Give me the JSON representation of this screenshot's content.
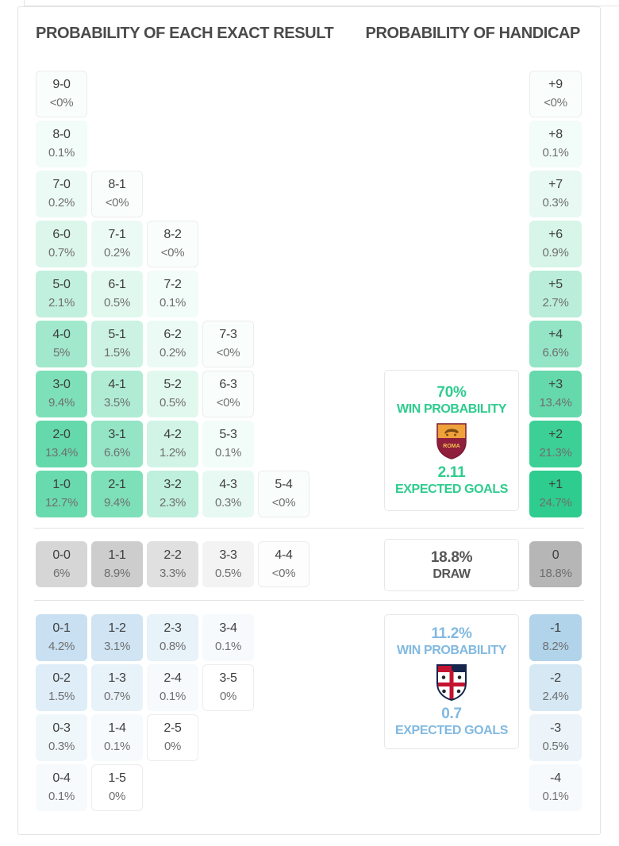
{
  "headers": {
    "left": "PROBABILITY OF EACH EXACT RESULT",
    "right": "PROBABILITY OF HANDICAP"
  },
  "colors": {
    "home": "#2ecc8e",
    "draw": "#ababab",
    "away": "#79b4dd",
    "home_text": "#2ecc8e",
    "away_text": "#82b9e0",
    "draw_text": "#555555"
  },
  "chart_data": {
    "type": "heatmap",
    "title_left": "PROBABILITY OF EACH EXACT RESULT",
    "title_right": "PROBABILITY OF HANDICAP",
    "max_pct": 24.7,
    "exact_result_rows": [
      {
        "group": "home",
        "cells": [
          {
            "score": "9-0",
            "pct": "<0%",
            "v": 0.02
          }
        ]
      },
      {
        "group": "home",
        "cells": [
          {
            "score": "8-0",
            "pct": "0.1%",
            "v": 0.1
          }
        ]
      },
      {
        "group": "home",
        "cells": [
          {
            "score": "7-0",
            "pct": "0.2%",
            "v": 0.2
          },
          {
            "score": "8-1",
            "pct": "<0%",
            "v": 0.02
          }
        ]
      },
      {
        "group": "home",
        "cells": [
          {
            "score": "6-0",
            "pct": "0.7%",
            "v": 0.7
          },
          {
            "score": "7-1",
            "pct": "0.2%",
            "v": 0.2
          },
          {
            "score": "8-2",
            "pct": "<0%",
            "v": 0.02
          }
        ]
      },
      {
        "group": "home",
        "cells": [
          {
            "score": "5-0",
            "pct": "2.1%",
            "v": 2.1
          },
          {
            "score": "6-1",
            "pct": "0.5%",
            "v": 0.5
          },
          {
            "score": "7-2",
            "pct": "0.1%",
            "v": 0.1
          }
        ]
      },
      {
        "group": "home",
        "cells": [
          {
            "score": "4-0",
            "pct": "5%",
            "v": 5
          },
          {
            "score": "5-1",
            "pct": "1.5%",
            "v": 1.5
          },
          {
            "score": "6-2",
            "pct": "0.2%",
            "v": 0.2
          },
          {
            "score": "7-3",
            "pct": "<0%",
            "v": 0.02
          }
        ]
      },
      {
        "group": "home",
        "cells": [
          {
            "score": "3-0",
            "pct": "9.4%",
            "v": 9.4
          },
          {
            "score": "4-1",
            "pct": "3.5%",
            "v": 3.5
          },
          {
            "score": "5-2",
            "pct": "0.5%",
            "v": 0.5
          },
          {
            "score": "6-3",
            "pct": "<0%",
            "v": 0.02
          }
        ]
      },
      {
        "group": "home",
        "cells": [
          {
            "score": "2-0",
            "pct": "13.4%",
            "v": 13.4
          },
          {
            "score": "3-1",
            "pct": "6.6%",
            "v": 6.6
          },
          {
            "score": "4-2",
            "pct": "1.2%",
            "v": 1.2
          },
          {
            "score": "5-3",
            "pct": "0.1%",
            "v": 0.1
          }
        ]
      },
      {
        "group": "home",
        "cells": [
          {
            "score": "1-0",
            "pct": "12.7%",
            "v": 12.7
          },
          {
            "score": "2-1",
            "pct": "9.4%",
            "v": 9.4
          },
          {
            "score": "3-2",
            "pct": "2.3%",
            "v": 2.3
          },
          {
            "score": "4-3",
            "pct": "0.3%",
            "v": 0.3
          },
          {
            "score": "5-4",
            "pct": "<0%",
            "v": 0.02
          }
        ]
      },
      {
        "group": "draw",
        "cells": [
          {
            "score": "0-0",
            "pct": "6%",
            "v": 6
          },
          {
            "score": "1-1",
            "pct": "8.9%",
            "v": 8.9
          },
          {
            "score": "2-2",
            "pct": "3.3%",
            "v": 3.3
          },
          {
            "score": "3-3",
            "pct": "0.5%",
            "v": 0.5
          },
          {
            "score": "4-4",
            "pct": "<0%",
            "v": 0.02
          }
        ]
      },
      {
        "group": "away",
        "cells": [
          {
            "score": "0-1",
            "pct": "4.2%",
            "v": 4.2
          },
          {
            "score": "1-2",
            "pct": "3.1%",
            "v": 3.1
          },
          {
            "score": "2-3",
            "pct": "0.8%",
            "v": 0.8
          },
          {
            "score": "3-4",
            "pct": "0.1%",
            "v": 0.1
          }
        ]
      },
      {
        "group": "away",
        "cells": [
          {
            "score": "0-2",
            "pct": "1.5%",
            "v": 1.5
          },
          {
            "score": "1-3",
            "pct": "0.7%",
            "v": 0.7
          },
          {
            "score": "2-4",
            "pct": "0.1%",
            "v": 0.1
          },
          {
            "score": "3-5",
            "pct": "0%",
            "v": 0
          }
        ]
      },
      {
        "group": "away",
        "cells": [
          {
            "score": "0-3",
            "pct": "0.3%",
            "v": 0.3
          },
          {
            "score": "1-4",
            "pct": "0.1%",
            "v": 0.1
          },
          {
            "score": "2-5",
            "pct": "0%",
            "v": 0
          }
        ]
      },
      {
        "group": "away",
        "cells": [
          {
            "score": "0-4",
            "pct": "0.1%",
            "v": 0.1
          },
          {
            "score": "1-5",
            "pct": "0%",
            "v": 0
          }
        ]
      }
    ],
    "handicap": [
      {
        "label": "+9",
        "pct": "<0%",
        "v": 0.02,
        "group": "home"
      },
      {
        "label": "+8",
        "pct": "0.1%",
        "v": 0.1,
        "group": "home"
      },
      {
        "label": "+7",
        "pct": "0.3%",
        "v": 0.3,
        "group": "home"
      },
      {
        "label": "+6",
        "pct": "0.9%",
        "v": 0.9,
        "group": "home"
      },
      {
        "label": "+5",
        "pct": "2.7%",
        "v": 2.7,
        "group": "home"
      },
      {
        "label": "+4",
        "pct": "6.6%",
        "v": 6.6,
        "group": "home"
      },
      {
        "label": "+3",
        "pct": "13.4%",
        "v": 13.4,
        "group": "home"
      },
      {
        "label": "+2",
        "pct": "21.3%",
        "v": 21.3,
        "group": "home"
      },
      {
        "label": "+1",
        "pct": "24.7%",
        "v": 24.7,
        "group": "home"
      },
      {
        "label": "0",
        "pct": "18.8%",
        "v": 18.8,
        "group": "draw"
      },
      {
        "label": "-1",
        "pct": "8.2%",
        "v": 8.2,
        "group": "away"
      },
      {
        "label": "-2",
        "pct": "2.4%",
        "v": 2.4,
        "group": "away"
      },
      {
        "label": "-3",
        "pct": "0.5%",
        "v": 0.5,
        "group": "away"
      },
      {
        "label": "-4",
        "pct": "0.1%",
        "v": 0.1,
        "group": "away"
      }
    ],
    "summary": {
      "home": {
        "percent": "70%",
        "label": "WIN PROBABILITY",
        "crest": "roma",
        "goals": "2.11",
        "goals_label": "EXPECTED GOALS"
      },
      "draw": {
        "percent": "18.8%",
        "label": "DRAW"
      },
      "away": {
        "percent": "11.2%",
        "label": "WIN PROBABILITY",
        "crest": "cagliari",
        "goals": "0.7",
        "goals_label": "EXPECTED GOALS"
      }
    }
  }
}
